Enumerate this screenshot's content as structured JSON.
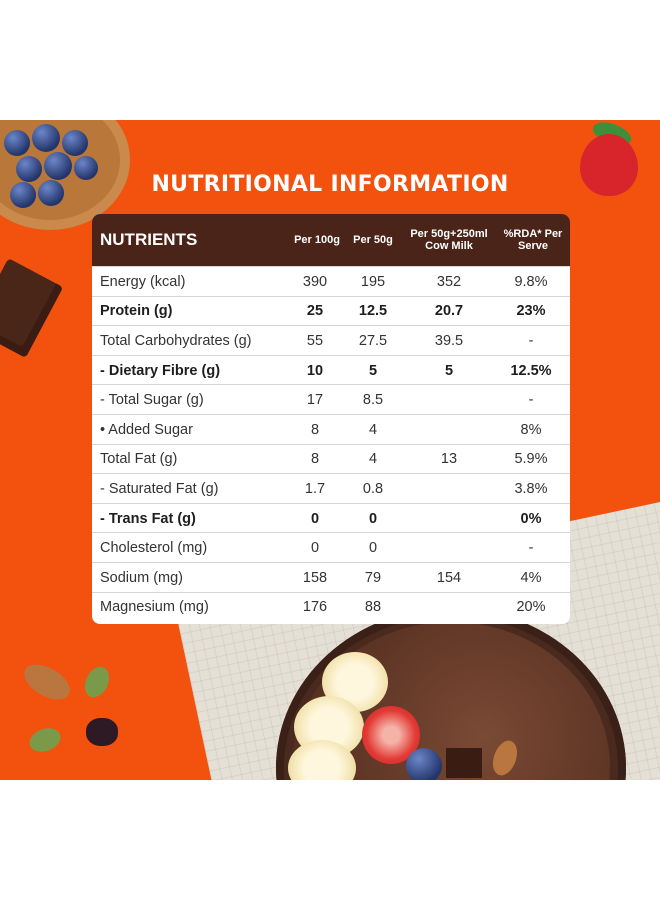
{
  "title": "NUTRITIONAL INFORMATION",
  "colors": {
    "banner": "#f2520d",
    "header": "#4a2418",
    "card": "#ffffff"
  },
  "table": {
    "headers": [
      "NUTRIENTS",
      "Per 100g",
      "Per 50g",
      "Per 50g+250ml Cow Milk",
      "%RDA* Per Serve"
    ],
    "rows": [
      {
        "name": "Energy (kcal)",
        "per100": "390",
        "per50": "195",
        "milk": "352",
        "rda": "9.8%",
        "bold": false
      },
      {
        "name": "Protein (g)",
        "per100": "25",
        "per50": "12.5",
        "milk": "20.7",
        "rda": "23%",
        "bold": true
      },
      {
        "name": "Total Carbohydrates (g)",
        "per100": "55",
        "per50": "27.5",
        "milk": "39.5",
        "rda": "-",
        "bold": false
      },
      {
        "name": "- Dietary Fibre (g)",
        "per100": "10",
        "per50": "5",
        "milk": "5",
        "rda": "12.5%",
        "bold": true
      },
      {
        "name": "- Total Sugar (g)",
        "per100": "17",
        "per50": "8.5",
        "milk": "",
        "rda": "-",
        "bold": false
      },
      {
        "name": "• Added Sugar",
        "per100": "8",
        "per50": "4",
        "milk": "",
        "rda": "8%",
        "bold": false
      },
      {
        "name": "Total Fat (g)",
        "per100": "8",
        "per50": "4",
        "milk": "13",
        "rda": "5.9%",
        "bold": false
      },
      {
        "name": "- Saturated Fat (g)",
        "per100": "1.7",
        "per50": "0.8",
        "milk": "",
        "rda": "3.8%",
        "bold": false
      },
      {
        "name": "- Trans Fat (g)",
        "per100": "0",
        "per50": "0",
        "milk": "",
        "rda": "0%",
        "bold": true
      },
      {
        "name": "Cholesterol (mg)",
        "per100": "0",
        "per50": "0",
        "milk": "",
        "rda": "-",
        "bold": false
      },
      {
        "name": "Sodium (mg)",
        "per100": "158",
        "per50": "79",
        "milk": "154",
        "rda": "4%",
        "bold": false
      },
      {
        "name": "Magnesium (mg)",
        "per100": "176",
        "per50": "88",
        "milk": "",
        "rda": "20%",
        "bold": false
      }
    ]
  }
}
